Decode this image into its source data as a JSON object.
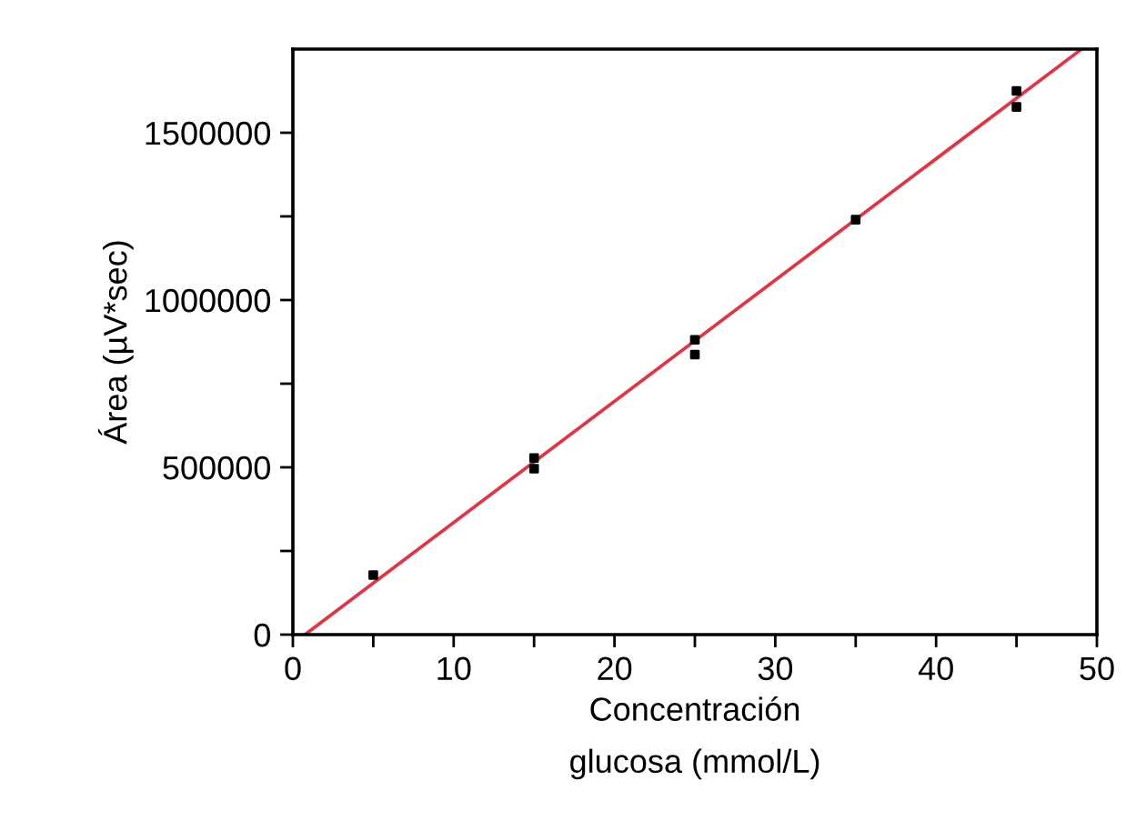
{
  "chart_data": {
    "type": "scatter",
    "xlabel": "Concentración\nglucosa (mmol/L)",
    "ylabel": "Área (µV*sec)",
    "xlim": [
      0,
      50
    ],
    "ylim": [
      0,
      1750000
    ],
    "xticks": [
      0,
      {
        "value": 5,
        "label": null
      },
      10,
      {
        "value": 15,
        "label": null
      },
      20,
      {
        "value": 25,
        "label": null
      },
      30,
      {
        "value": 35,
        "label": null
      },
      40,
      {
        "value": 45,
        "label": null
      },
      50
    ],
    "yticks": [
      0,
      {
        "value": 250000,
        "label": null
      },
      500000,
      {
        "value": 750000,
        "label": null
      },
      1000000,
      {
        "value": 1250000,
        "label": null
      },
      1500000
    ],
    "grid": false,
    "marker": "square",
    "series": [
      {
        "color": "#000000",
        "x": [
          5,
          15,
          15,
          25,
          25,
          35,
          45,
          45
        ],
        "values": [
          178000,
          528000,
          496000,
          881000,
          837000,
          1240000,
          1625000,
          1577000
        ]
      },
      {
        "type": "line",
        "color": "#e8303f",
        "line_style": "solid",
        "marker": "none",
        "x": [
          0.75,
          49.05
        ],
        "values": [
          0,
          1750000
        ]
      }
    ]
  }
}
